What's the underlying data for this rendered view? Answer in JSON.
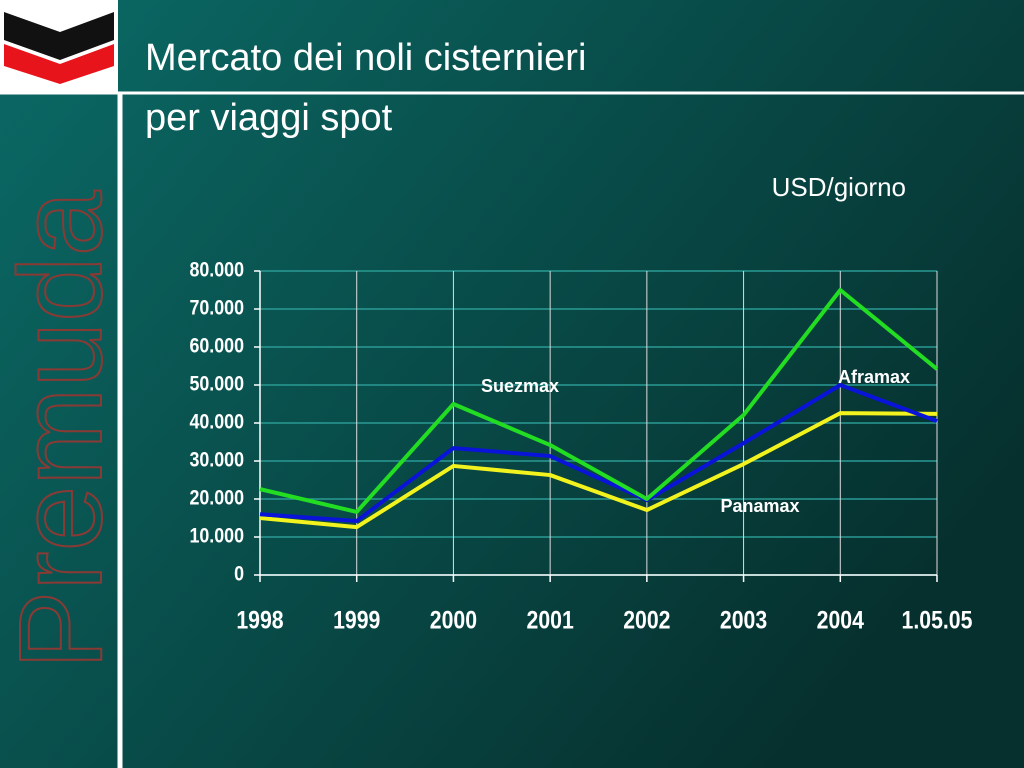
{
  "slide": {
    "logo_text": "Premuda",
    "title": [
      "Mercato dei noli cisternieri",
      "per viaggi spot"
    ]
  },
  "chart_data": {
    "type": "line",
    "subtitle": "USD/giorno",
    "categories": [
      "1998",
      "1999",
      "2000",
      "2001",
      "2002",
      "2003",
      "2004",
      "1.05.05"
    ],
    "series": [
      {
        "name": "Suezmax",
        "color": "#22dd22",
        "values": [
          22600,
          16600,
          45000,
          34200,
          20000,
          42100,
          75000,
          54200
        ]
      },
      {
        "name": "Aframax",
        "color": "#0a14d8",
        "values": [
          16000,
          14200,
          33400,
          31300,
          19700,
          34700,
          50000,
          40500
        ]
      },
      {
        "name": "Panamax",
        "color": "#f2f21e",
        "values": [
          15000,
          12600,
          28700,
          26300,
          17100,
          29200,
          42600,
          42400
        ]
      }
    ],
    "ylim": [
      0,
      80000
    ],
    "yticks": [
      0,
      {
        "value": 10000,
        "label": "10.000"
      },
      {
        "value": 20000,
        "label": "20.000"
      },
      {
        "value": 30000,
        "label": "30.000"
      },
      {
        "value": 40000,
        "label": "40.000"
      },
      {
        "value": 50000,
        "label": "50.000"
      },
      {
        "value": 60000,
        "label": "60.000"
      },
      {
        "value": 70000,
        "label": "70.000"
      },
      {
        "value": 80000,
        "label": "80.000"
      }
    ],
    "grid": true
  }
}
